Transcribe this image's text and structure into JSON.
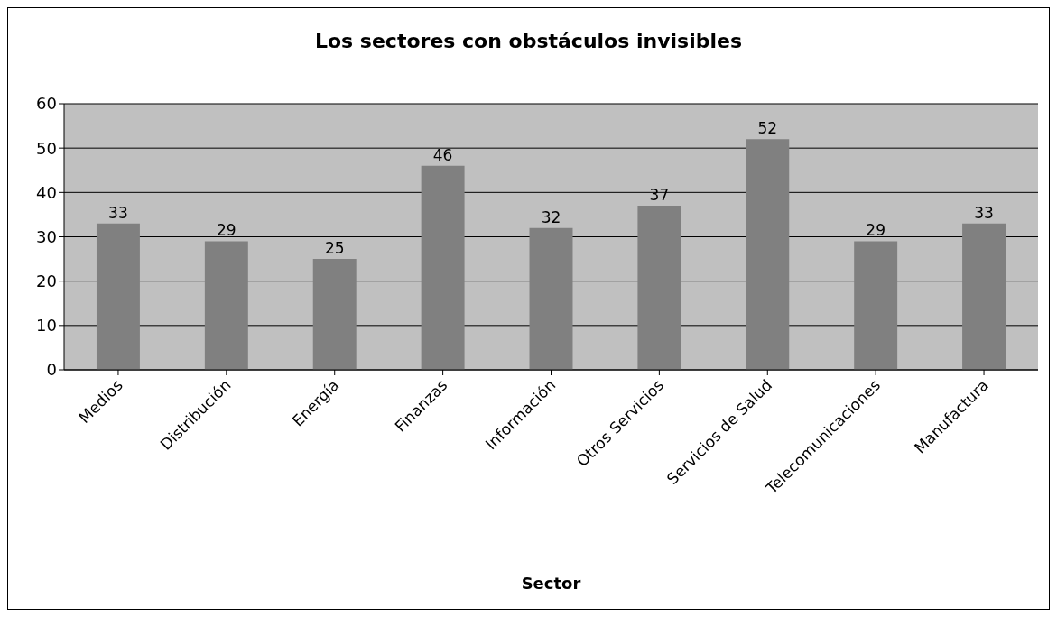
{
  "chart_data": {
    "type": "bar",
    "title": "Los sectores con obstáculos invisibles",
    "xlabel": "Sector",
    "categories": [
      "Medios",
      "Distribución",
      "Energía",
      "Finanzas",
      "Información",
      "Otros Servicios",
      "Servicios de Salud",
      "Telecomunicaciones",
      "Manufactura"
    ],
    "values": [
      33,
      29,
      25,
      46,
      32,
      37,
      52,
      29,
      33
    ],
    "color": "#808080",
    "ylim": [
      0,
      60
    ],
    "yticks": [
      0,
      10,
      20,
      30,
      40,
      50,
      60
    ],
    "grid": "y",
    "data_labels": true
  }
}
